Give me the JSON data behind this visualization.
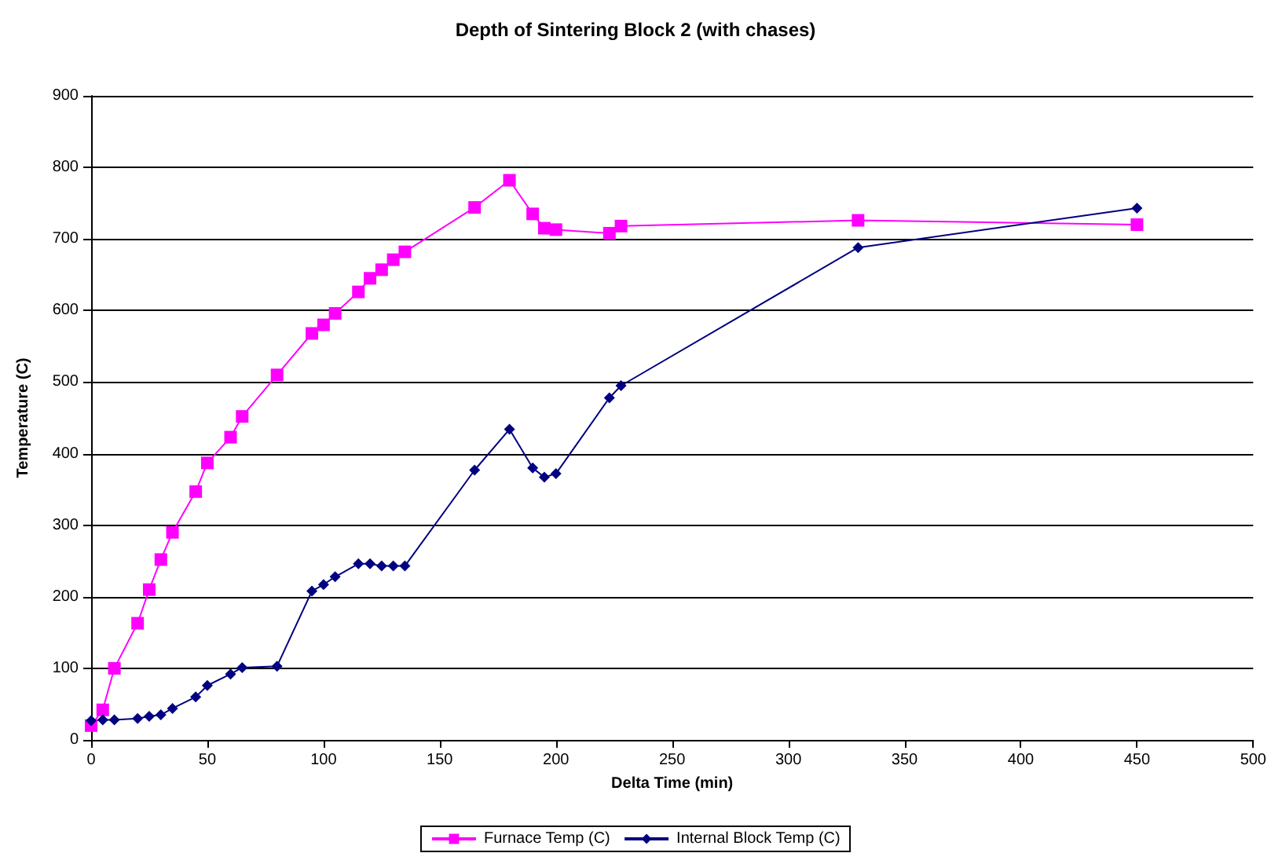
{
  "chart_data": {
    "type": "line",
    "title": "Depth of Sintering Block 2 (with chases)",
    "xlabel": "Delta Time (min)",
    "ylabel": "Temperature (C)",
    "xlim": [
      0,
      500
    ],
    "xticks": [
      0,
      50,
      100,
      150,
      200,
      250,
      300,
      350,
      400,
      450,
      500
    ],
    "ylim": [
      0,
      900
    ],
    "yticks": [
      0,
      100,
      200,
      300,
      400,
      500,
      600,
      700,
      800,
      900
    ],
    "grid": "y",
    "legend": "bottom",
    "series": [
      {
        "name": "Furnace Temp (C)",
        "color": "#ff00ff",
        "marker": "square",
        "x": [
          0,
          5,
          10,
          20,
          25,
          30,
          35,
          45,
          50,
          60,
          65,
          80,
          95,
          100,
          105,
          115,
          120,
          125,
          130,
          135,
          165,
          180,
          190,
          195,
          200,
          223,
          228,
          330,
          450
        ],
        "values": [
          20,
          42,
          100,
          163,
          210,
          252,
          290,
          347,
          387,
          423,
          452,
          510,
          568,
          580,
          596,
          626,
          645,
          657,
          671,
          682,
          744,
          782,
          735,
          715,
          713,
          708,
          718,
          726,
          720
        ]
      },
      {
        "name": "Internal Block Temp (C)",
        "color": "#000080",
        "marker": "diamond",
        "x": [
          0,
          5,
          10,
          20,
          25,
          30,
          35,
          45,
          50,
          60,
          65,
          80,
          95,
          100,
          105,
          115,
          120,
          125,
          130,
          135,
          165,
          180,
          190,
          195,
          200,
          223,
          228,
          330,
          450
        ],
        "values": [
          27,
          28,
          28,
          30,
          33,
          35,
          44,
          60,
          76,
          92,
          101,
          103,
          208,
          217,
          228,
          246,
          246,
          243,
          243,
          243,
          377,
          434,
          380,
          367,
          372,
          478,
          495,
          688,
          743
        ]
      }
    ]
  }
}
